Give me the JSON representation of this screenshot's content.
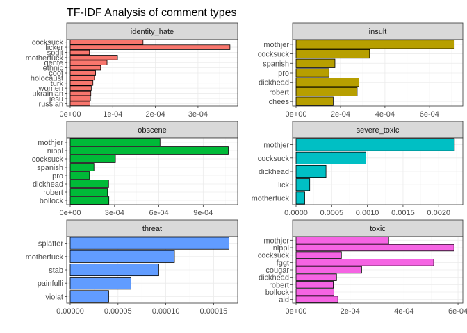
{
  "chart_data": {
    "title": "TF-IDF Analysis of comment types",
    "type": "bar",
    "orientation": "horizontal",
    "layout": "facet-grid-2x3",
    "grid": true,
    "panels": [
      {
        "name": "identity_hate",
        "color": "#F8766D",
        "categories": [
          "cocksuck",
          "licker",
          "sodit",
          "motherfuck",
          "gente",
          "ethnic",
          "coot",
          "holocaust",
          "turk",
          "women",
          "ukrainian",
          "jesu",
          "russian"
        ],
        "values": [
          0.000171,
          0.000375,
          4.52e-05,
          0.000111,
          8.65e-05,
          7.15e-05,
          5.97e-05,
          5.7e-05,
          5.34e-05,
          4.95e-05,
          4.85e-05,
          4.75e-05,
          4.65e-05
        ],
        "xlim": [
          0,
          0.000385
        ],
        "xticks": [
          0,
          0.0001,
          0.0002,
          0.0003
        ],
        "xtick_labels": [
          "0e+00",
          "1e-04",
          "2e-04",
          "3e-04"
        ]
      },
      {
        "name": "insult",
        "color": "#B79F00",
        "categories": [
          "mothjer",
          "cocksuck",
          "spanish",
          "pro",
          "dickhead",
          "robert",
          "chees"
        ],
        "values": [
          0.000712,
          0.000331,
          0.000175,
          0.000148,
          0.000283,
          0.000275,
          0.000167
        ],
        "xlim": [
          0,
          0.000735
        ],
        "xticks": [
          0,
          0.0002,
          0.0004,
          0.0006
        ],
        "xtick_labels": [
          "0e+00",
          "2e-04",
          "4e-04",
          "6e-04"
        ]
      },
      {
        "name": "obscene",
        "color": "#00BA38",
        "categories": [
          "mothjer",
          "nippl",
          "cocksuck",
          "spanish",
          "pro",
          "dickhead",
          "robert",
          "bollock"
        ],
        "values": [
          0.000608,
          0.00107,
          0.000306,
          0.000161,
          0.000131,
          0.00026,
          0.000253,
          0.000262
        ],
        "xlim": [
          0,
          0.00111
        ],
        "xticks": [
          0,
          0.0003,
          0.0006,
          0.0009
        ],
        "xtick_labels": [
          "0e+00",
          "3e-04",
          "6e-04",
          "9e-04"
        ]
      },
      {
        "name": "severe_toxic",
        "color": "#00BFC4",
        "categories": [
          "mothjer",
          "cocksuck",
          "dickhead",
          "lick",
          "motherfuck"
        ],
        "values": [
          0.00222,
          0.00098,
          0.00042,
          0.000192,
          0.000122
        ],
        "xlim": [
          0,
          0.00229
        ],
        "xticks": [
          0,
          0.0005,
          0.001,
          0.0015,
          0.002
        ],
        "xtick_labels": [
          "0.0000",
          "0.0005",
          "0.0010",
          "0.0015",
          "0.0020"
        ]
      },
      {
        "name": "threat",
        "color": "#619CFF",
        "categories": [
          "splatter",
          "motherfuck",
          "stab",
          "painfulli",
          "violat"
        ],
        "values": [
          0.000166,
          0.000109,
          9.26e-05,
          6.35e-05,
          4.03e-05
        ],
        "xlim": [
          0,
          0.0001715
        ],
        "xticks": [
          0,
          5e-05,
          0.0001,
          0.00015
        ],
        "xtick_labels": [
          "0.00000",
          "0.00005",
          "0.00010",
          "0.00015"
        ]
      },
      {
        "name": "toxic",
        "color": "#F564E3",
        "categories": [
          "mothjer",
          "nippl",
          "cocksuck",
          "fggt",
          "cougar",
          "dickhead",
          "robert",
          "bollock",
          "aid"
        ],
        "values": [
          0.000343,
          0.000585,
          0.000168,
          0.00051,
          0.000243,
          0.00015,
          0.000138,
          0.00014,
          0.000155
        ],
        "xlim": [
          0,
          0.000605
        ],
        "xticks": [
          0,
          0.0002,
          0.0004,
          0.0006
        ],
        "xtick_labels": [
          "0e+00",
          "2e-04",
          "4e-04",
          "6e-04"
        ]
      }
    ]
  }
}
